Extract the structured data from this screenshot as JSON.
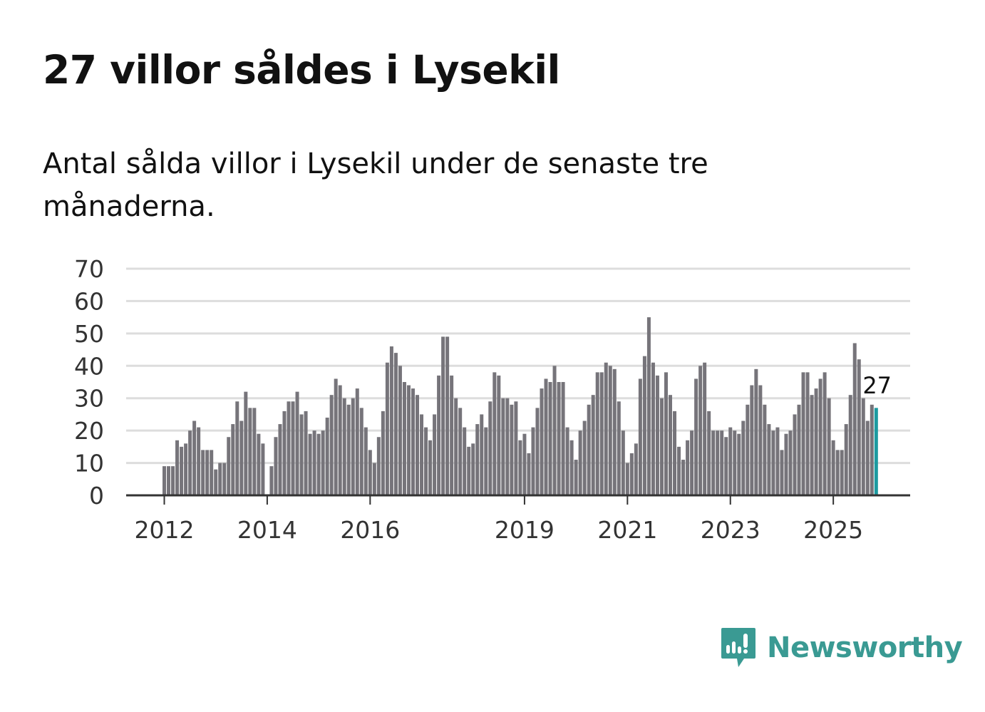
{
  "title": "27 villor såldes i Lysekil",
  "subtitle": "Antal sålda villor i Lysekil under de senaste tre månaderna.",
  "brand": {
    "name": "Newsworthy",
    "color": "#3a9a93"
  },
  "colors": {
    "bar": "#76747a",
    "highlight": "#1c9aa0",
    "grid": "#dddddd",
    "axis": "#333333"
  },
  "chart_data": {
    "type": "bar",
    "title": "27 villor såldes i Lysekil",
    "xlabel": "",
    "ylabel": "",
    "ylim": [
      0,
      70
    ],
    "yticks": [
      0,
      10,
      20,
      30,
      40,
      50,
      60,
      70
    ],
    "start_period": "2012-01",
    "xticks": [
      {
        "label": "2012",
        "index": 0
      },
      {
        "label": "2014",
        "index": 24
      },
      {
        "label": "2016",
        "index": 48
      },
      {
        "label": "2019",
        "index": 84
      },
      {
        "label": "2021",
        "index": 108
      },
      {
        "label": "2023",
        "index": 132
      },
      {
        "label": "2025",
        "index": 156
      }
    ],
    "series": [
      {
        "name": "Antal sålda villor (rullande tre månader)",
        "values": [
          9,
          9,
          9,
          17,
          15,
          16,
          20,
          23,
          21,
          14,
          14,
          14,
          8,
          10,
          10,
          18,
          22,
          29,
          23,
          32,
          27,
          27,
          19,
          16,
          null,
          9,
          18,
          22,
          26,
          29,
          29,
          32,
          25,
          26,
          19,
          20,
          19,
          20,
          24,
          31,
          36,
          34,
          30,
          28,
          30,
          33,
          27,
          21,
          14,
          10,
          18,
          26,
          41,
          46,
          44,
          40,
          35,
          34,
          33,
          31,
          25,
          21,
          17,
          25,
          37,
          49,
          49,
          37,
          30,
          27,
          21,
          15,
          16,
          22,
          25,
          21,
          29,
          38,
          37,
          30,
          30,
          28,
          29,
          17,
          19,
          13,
          21,
          27,
          33,
          36,
          35,
          40,
          35,
          35,
          21,
          17,
          11,
          20,
          23,
          28,
          31,
          38,
          38,
          41,
          40,
          39,
          29,
          20,
          10,
          13,
          16,
          36,
          43,
          55,
          41,
          37,
          30,
          38,
          31,
          26,
          15,
          11,
          17,
          20,
          36,
          40,
          41,
          26,
          20,
          20,
          20,
          18,
          21,
          20,
          19,
          23,
          28,
          34,
          39,
          34,
          28,
          22,
          20,
          21,
          14,
          19,
          20,
          25,
          28,
          38,
          38,
          31,
          33,
          36,
          38,
          30,
          17,
          14,
          14,
          22,
          31,
          47,
          42,
          30,
          23,
          28,
          27
        ]
      }
    ],
    "highlight_last": true,
    "last_value_label": "27"
  }
}
